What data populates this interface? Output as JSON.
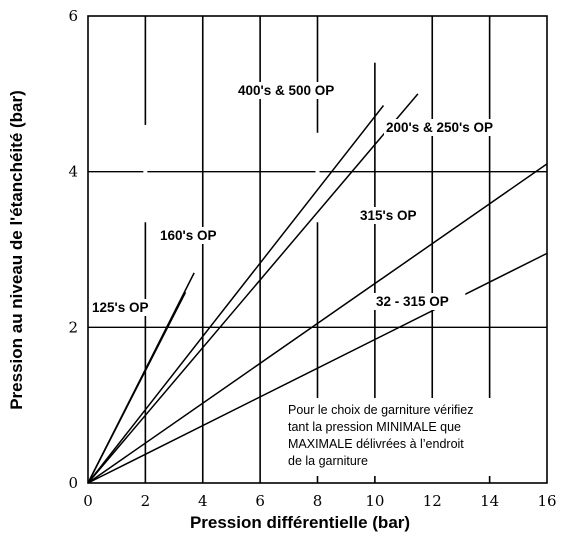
{
  "chart_data": {
    "type": "line",
    "title": "",
    "xlabel": "Pression différentielle (bar)",
    "ylabel": "Pression au niveau de l'étanchéité (bar)",
    "xlim": [
      0,
      16
    ],
    "ylim": [
      0,
      6
    ],
    "x_ticks": [
      "0",
      "2",
      "4",
      "6",
      "8",
      "10",
      "12",
      "14",
      "16"
    ],
    "y_ticks": [
      "0",
      "2",
      "4",
      "6"
    ],
    "grid": true,
    "series": [
      {
        "name": "125's OP",
        "x": [
          0,
          3.4
        ],
        "y": [
          0,
          2.45
        ]
      },
      {
        "name": "160's OP",
        "x": [
          0,
          3.7
        ],
        "y": [
          0,
          2.7
        ]
      },
      {
        "name": "400's & 500 OP",
        "x": [
          0,
          10.3
        ],
        "y": [
          0,
          4.85
        ]
      },
      {
        "name": "200's & 250's OP",
        "x": [
          0,
          11.5
        ],
        "y": [
          0,
          5.0
        ]
      },
      {
        "name": "315's OP",
        "x": [
          0,
          16.0
        ],
        "y": [
          0,
          4.1
        ]
      },
      {
        "name": "32 - 315 OP",
        "x": [
          0,
          16.0
        ],
        "y": [
          0,
          2.95
        ]
      }
    ],
    "annotations": [
      "Pour le choix de garniture vérifiez",
      "tant la pression MINIMALE que",
      "MAXIMALE délivrées à l’endroit",
      "de la garniture"
    ]
  }
}
